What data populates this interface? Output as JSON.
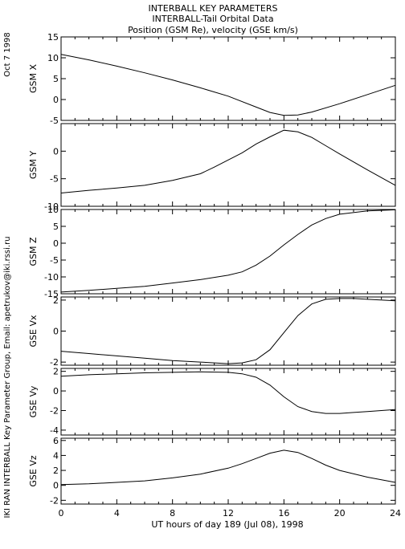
{
  "header": {
    "line1": "INTERBALL KEY PARAMETERS",
    "line2": "INTERBALL-Tail Orbital Data",
    "line3": "Position (GSM Re), velocity (GSE km/s)"
  },
  "side": {
    "date": "Oct  7 1998",
    "credit": "IKI RAN INTERBALL Key Parameter Group, Email: apetrukov@iki.rssi.ru"
  },
  "chart_data": {
    "type": "line",
    "xlabel": "UT hours of day 189 (Jul 08), 1998",
    "xlim": [
      0,
      24
    ],
    "xticks": [
      0,
      4,
      8,
      12,
      16,
      20,
      24
    ],
    "panels": [
      {
        "ylabel": "GSM X",
        "ylim": [
          -5,
          15
        ],
        "yticks": [
          -5,
          0,
          5,
          10,
          15
        ],
        "x": [
          0,
          2,
          4,
          6,
          8,
          10,
          12,
          14,
          15,
          16,
          17,
          18,
          20,
          22,
          24
        ],
        "values": [
          10.8,
          9.5,
          8.0,
          6.4,
          4.7,
          2.8,
          0.8,
          -1.8,
          -3.1,
          -3.8,
          -3.7,
          -3.0,
          -1.0,
          1.2,
          3.4
        ]
      },
      {
        "ylabel": "GSM Y",
        "ylim": [
          -10,
          5
        ],
        "yticks": [
          -10,
          -5,
          0
        ],
        "x": [
          0,
          2,
          4,
          6,
          8,
          10,
          11,
          12,
          13,
          14,
          15,
          16,
          17,
          18,
          19,
          20,
          22,
          24
        ],
        "values": [
          -7.6,
          -7.1,
          -6.7,
          -6.2,
          -5.3,
          -4.1,
          -2.9,
          -1.6,
          -0.3,
          1.3,
          2.6,
          3.8,
          3.5,
          2.5,
          1.0,
          -0.5,
          -3.4,
          -6.2
        ]
      },
      {
        "ylabel": "GSM Z",
        "ylim": [
          -15,
          10
        ],
        "yticks": [
          -15,
          -10,
          -5,
          0,
          5,
          10
        ],
        "x": [
          0,
          2,
          4,
          6,
          8,
          10,
          12,
          13,
          14,
          15,
          16,
          17,
          18,
          19,
          20,
          22,
          24
        ],
        "values": [
          -14.5,
          -14.0,
          -13.4,
          -12.8,
          -11.8,
          -10.8,
          -9.5,
          -8.5,
          -6.5,
          -3.8,
          -0.5,
          2.6,
          5.4,
          7.3,
          8.6,
          9.6,
          9.9
        ]
      },
      {
        "ylabel": "GSE Vx",
        "ylim": [
          -2.2,
          2.2
        ],
        "yticks": [
          -2,
          0,
          2
        ],
        "x": [
          0,
          2,
          4,
          6,
          8,
          10,
          12,
          13,
          14,
          15,
          16,
          17,
          18,
          19,
          20,
          21,
          22,
          24
        ],
        "values": [
          -1.3,
          -1.45,
          -1.6,
          -1.75,
          -1.9,
          -2.0,
          -2.1,
          -2.05,
          -1.85,
          -1.2,
          -0.1,
          1.0,
          1.75,
          2.05,
          2.1,
          2.1,
          2.05,
          1.95
        ]
      },
      {
        "ylabel": "GSE Vy",
        "ylim": [
          -4.5,
          2.3
        ],
        "yticks": [
          -4,
          -2,
          0,
          2
        ],
        "x": [
          0,
          2,
          4,
          6,
          8,
          10,
          12,
          13,
          14,
          15,
          16,
          17,
          18,
          19,
          20,
          21,
          22,
          24
        ],
        "values": [
          1.5,
          1.65,
          1.75,
          1.85,
          1.9,
          1.95,
          1.9,
          1.75,
          1.4,
          0.6,
          -0.6,
          -1.6,
          -2.1,
          -2.3,
          -2.3,
          -2.2,
          -2.1,
          -1.9
        ]
      },
      {
        "ylabel": "GSE Vz",
        "ylim": [
          -2.5,
          6.3
        ],
        "yticks": [
          -2,
          0,
          2,
          4,
          6
        ],
        "x": [
          0,
          2,
          4,
          6,
          8,
          10,
          12,
          13,
          14,
          15,
          16,
          17,
          18,
          19,
          20,
          22,
          24
        ],
        "values": [
          0.1,
          0.2,
          0.4,
          0.6,
          1.0,
          1.5,
          2.3,
          2.9,
          3.6,
          4.3,
          4.7,
          4.4,
          3.6,
          2.7,
          2.0,
          1.1,
          0.4
        ]
      }
    ]
  }
}
